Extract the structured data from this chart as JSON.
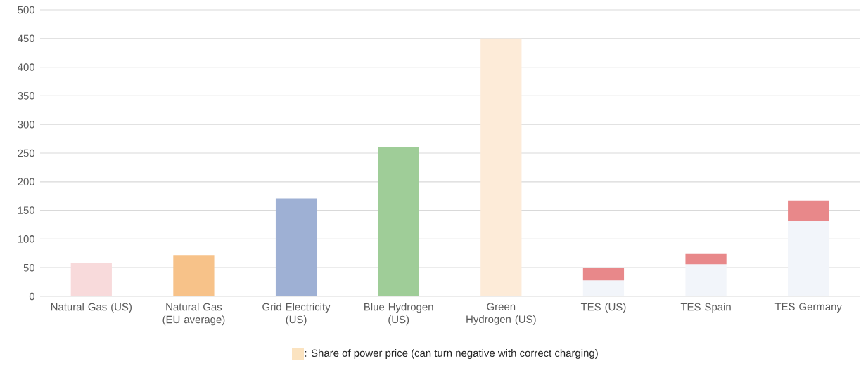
{
  "chart_data": {
    "type": "bar",
    "stacked": true,
    "categories": [
      "Natural Gas (US)",
      "Natural Gas (EU average)",
      "Grid Electricity (US)",
      "Blue Hydrogen (US)",
      "Green Hydrogen (US)",
      "TES (US)",
      "TES Spain",
      "TES Germany"
    ],
    "series": [
      {
        "values": [
          58,
          72,
          171,
          261,
          450,
          28,
          56,
          131
        ],
        "colors": [
          "#f8dadb",
          "#f7c289",
          "#9eb0d4",
          "#9fcd98",
          "#fdebd8",
          "#f2f5fa",
          "#f2f5fa",
          "#f2f5fa"
        ]
      },
      {
        "values": [
          null,
          null,
          null,
          null,
          null,
          22,
          19,
          36
        ],
        "color": "#e8888a"
      }
    ],
    "ylim": [
      0,
      500
    ],
    "yticks": [
      0,
      50,
      100,
      150,
      200,
      250,
      300,
      350,
      400,
      450,
      500
    ],
    "grid": "y",
    "annotations": [
      ": Share of power price (can turn negative with correct charging)"
    ]
  }
}
